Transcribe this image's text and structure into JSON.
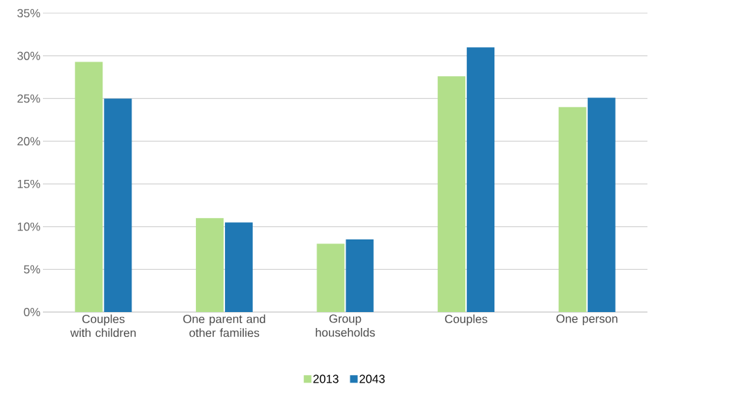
{
  "chart_data": {
    "type": "bar",
    "categories": [
      "Couples with children",
      "One parent and other families",
      "Group households",
      "Couples",
      "One person"
    ],
    "series": [
      {
        "name": "2013",
        "color": "#b2df8a",
        "values": [
          29.3,
          11.0,
          8.0,
          27.6,
          24.0
        ]
      },
      {
        "name": "2043",
        "color": "#1f78b4",
        "values": [
          25.0,
          10.5,
          8.5,
          31.0,
          25.1
        ]
      }
    ],
    "ylim": [
      0,
      35
    ],
    "yticks": [
      {
        "value": 0,
        "label": "0%"
      },
      {
        "value": 5,
        "label": "5%"
      },
      {
        "value": 10,
        "label": "10%"
      },
      {
        "value": 15,
        "label": "15%"
      },
      {
        "value": 20,
        "label": "20%"
      },
      {
        "value": 25,
        "label": "25%"
      },
      {
        "value": 30,
        "label": "30%"
      },
      {
        "value": 35,
        "label": "35%"
      }
    ],
    "grid": "y",
    "legend": "bottom"
  }
}
